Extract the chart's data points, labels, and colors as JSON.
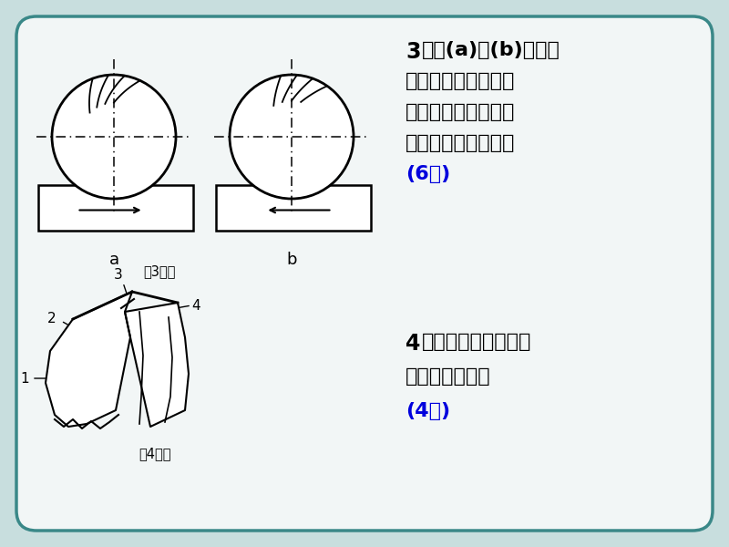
{
  "bg_color": "#c8dede",
  "card_color": "#f2f6f6",
  "border_color": "#3a8888",
  "black": "#000000",
  "blue": "#0000dd",
  "q3_line1": "、在(a)、(b)两图中",
  "q3_line2": "指出哪个是逆銃、哪",
  "q3_line3": "个是顺銃？并比较两",
  "q3_line4": "种銃削方式的特点。",
  "q3_score": "(6分)",
  "q3_caption": "第3题图",
  "q4_line1": "、图示麻花钒各部分",
  "q4_line2": "的名称是什么？",
  "q4_score": "(4分)",
  "q4_caption": "第4题图",
  "label_a": "a",
  "label_b": "b"
}
